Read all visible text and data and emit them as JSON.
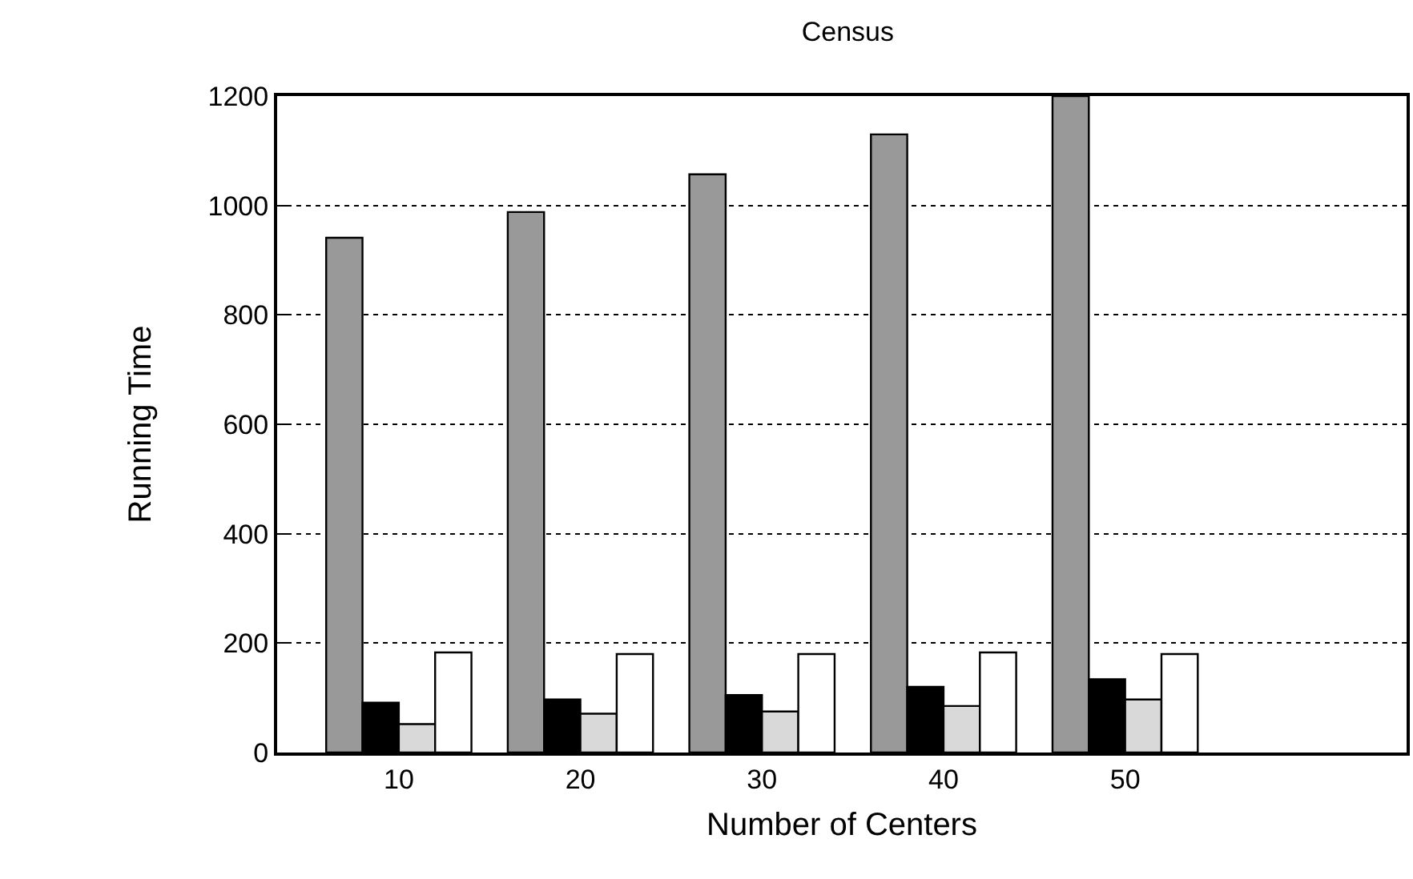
{
  "chart_data": {
    "type": "bar",
    "title": "Census",
    "xlabel": "Number of Centers",
    "ylabel": "Running Time",
    "categories": [
      "10",
      "20",
      "30",
      "40",
      "50"
    ],
    "series": [
      {
        "color": "#999999",
        "values": [
          941,
          988,
          1057,
          1130,
          1200
        ]
      },
      {
        "color": "#000000",
        "values": [
          91,
          97,
          105,
          120,
          134
        ]
      },
      {
        "color": "#d9d9d9",
        "values": [
          52,
          71,
          75,
          85,
          97
        ]
      },
      {
        "color": "#ffffff",
        "values": [
          183,
          180,
          180,
          183,
          180
        ]
      }
    ],
    "ylim": [
      0,
      1200
    ],
    "yticks": [
      0,
      200,
      400,
      600,
      800,
      1000,
      1200
    ],
    "grid": "y"
  }
}
